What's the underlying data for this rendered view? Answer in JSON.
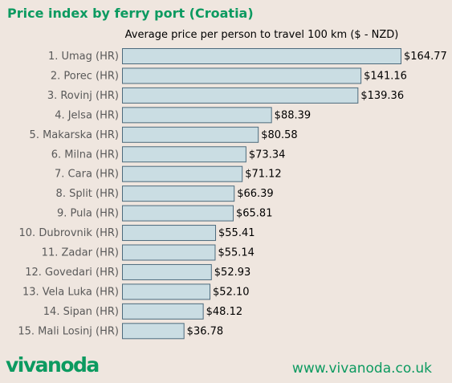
{
  "header": {
    "title": "Price index by ferry port (Croatia)"
  },
  "footer": {
    "logo_text": "vivanoda",
    "url": "www.vivanoda.co.uk"
  },
  "colors": {
    "accent": "#0c9a60",
    "bar_fill": "#cadde3",
    "bar_stroke": "#4d6b7d",
    "background": "#efe6df",
    "category_label": "#595959"
  },
  "chart_data": {
    "type": "bar",
    "orientation": "horizontal",
    "title": "Average price per person to travel 100 km ($ - NZD)",
    "categories": [
      "1. Umag (HR)",
      "2. Porec (HR)",
      "3. Rovinj (HR)",
      "4. Jelsa (HR)",
      "5. Makarska (HR)",
      "6. Milna (HR)",
      "7. Cara (HR)",
      "8. Split (HR)",
      "9. Pula (HR)",
      "10. Dubrovnik (HR)",
      "11. Zadar (HR)",
      "12. Govedari (HR)",
      "13. Vela Luka (HR)",
      "14. Sipan (HR)",
      "15. Mali Losinj (HR)"
    ],
    "values": [
      164.77,
      141.16,
      139.36,
      88.39,
      80.58,
      73.34,
      71.12,
      66.39,
      65.81,
      55.41,
      55.14,
      52.93,
      52.1,
      48.12,
      36.78
    ],
    "value_labels": [
      "$164.77",
      "$141.16",
      "$139.36",
      "$88.39",
      "$80.58",
      "$73.34",
      "$71.12",
      "$66.39",
      "$65.81",
      "$55.41",
      "$55.14",
      "$52.93",
      "$52.10",
      "$48.12",
      "$36.78"
    ],
    "xlim": [
      0,
      164.77
    ],
    "grid": false,
    "legend": "none"
  }
}
